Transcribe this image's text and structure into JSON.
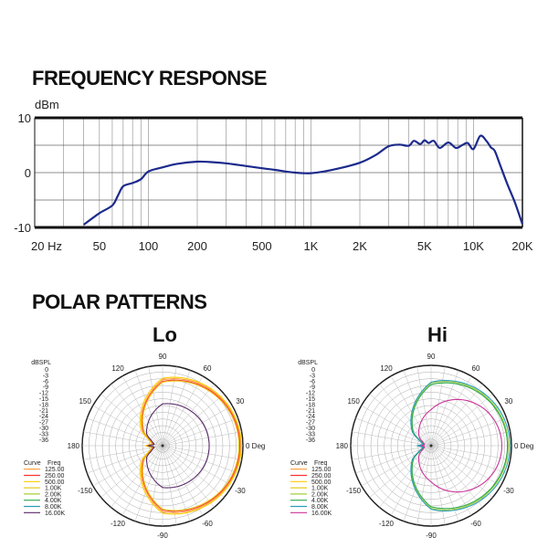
{
  "chart_data": [
    {
      "type": "line",
      "title": "FREQUENCY RESPONSE",
      "ylabel": "dBm",
      "xscale": "log",
      "xlim": [
        20,
        20000
      ],
      "ylim": [
        -10,
        10
      ],
      "grid": true,
      "x_ticks": [
        {
          "value": 20,
          "label": "20 Hz"
        },
        {
          "value": 50,
          "label": "50"
        },
        {
          "value": 100,
          "label": "100"
        },
        {
          "value": 200,
          "label": "200"
        },
        {
          "value": 500,
          "label": "500"
        },
        {
          "value": 1000,
          "label": "1K"
        },
        {
          "value": 2000,
          "label": "2K"
        },
        {
          "value": 5000,
          "label": "5K"
        },
        {
          "value": 10000,
          "label": "10K"
        },
        {
          "value": 20000,
          "label": "20K"
        }
      ],
      "y_ticks": [
        {
          "value": 10,
          "label": "10"
        },
        {
          "value": 0,
          "label": "0"
        },
        {
          "value": -10,
          "label": "-10"
        }
      ],
      "series": [
        {
          "color": "#1c2a8c",
          "x": [
            40,
            50,
            60,
            65,
            70,
            80,
            90,
            100,
            120,
            150,
            200,
            250,
            300,
            400,
            500,
            600,
            700,
            800,
            900,
            1000,
            1200,
            1500,
            2000,
            2500,
            3000,
            3500,
            4000,
            4300,
            4700,
            5000,
            5300,
            5700,
            6200,
            7000,
            7800,
            8500,
            9200,
            10000,
            11000,
            12000,
            12800,
            13500,
            14500,
            16000,
            18000,
            20000
          ],
          "values": [
            -9.5,
            -7.4,
            -6.0,
            -4.2,
            -2.5,
            -1.9,
            -1.2,
            0.2,
            0.9,
            1.6,
            2.0,
            1.9,
            1.7,
            1.2,
            0.8,
            0.5,
            0.2,
            0.0,
            -0.1,
            -0.1,
            0.2,
            0.8,
            1.8,
            3.2,
            4.8,
            5.1,
            4.9,
            5.8,
            5.2,
            5.9,
            5.4,
            5.8,
            4.5,
            5.5,
            4.5,
            5.0,
            5.4,
            4.3,
            6.7,
            5.8,
            4.6,
            4.0,
            1.6,
            -1.8,
            -5.5,
            -9.4
          ]
        }
      ]
    },
    {
      "type": "polar",
      "title": "Lo",
      "radial_axis_label": "dBSPL",
      "radial_ticks": [
        "0",
        "-3",
        "-6",
        "-9",
        "-12",
        "-15",
        "-18",
        "-21",
        "-24",
        "-27",
        "-30",
        "-33",
        "-36"
      ],
      "angle_labels": [
        "0 Deg",
        "30",
        "60",
        "90",
        "120",
        "150",
        "180",
        "-150",
        "-120",
        "-90",
        "-60",
        "-30"
      ],
      "legend_headers": [
        "Curve",
        "Freq"
      ],
      "series": [
        {
          "name": "125.00",
          "color": "#ff9933",
          "front_r": 0.97,
          "side_r": 0.82,
          "back_r": 0.18,
          "dip_r": 0.12
        },
        {
          "name": "250.00",
          "color": "#ff3333",
          "front_r": 0.96,
          "side_r": 0.8,
          "back_r": 0.17,
          "dip_r": 0.11
        },
        {
          "name": "500.00",
          "color": "#ffcc00",
          "front_r": 0.98,
          "side_r": 0.84,
          "back_r": 0.21,
          "dip_r": 0.13
        },
        {
          "name": "1.00K",
          "color": "#e8c820",
          "front_r": 0.95,
          "side_r": 0.79,
          "back_r": 0.16,
          "dip_r": 0.1
        },
        {
          "name": "2.00K",
          "color": "#a6cf3a",
          "front_r": 0,
          "side_r": 0,
          "back_r": 0,
          "dip_r": 0
        },
        {
          "name": "4.00K",
          "color": "#2aa84a",
          "front_r": 0,
          "side_r": 0,
          "back_r": 0,
          "dip_r": 0
        },
        {
          "name": "8.00K",
          "color": "#2a9fb8",
          "front_r": 0,
          "side_r": 0,
          "back_r": 0,
          "dip_r": 0
        },
        {
          "name": "16.00K",
          "color": "#5a2a6a",
          "front_r": 0.58,
          "side_r": 0.52,
          "back_r": 0.18,
          "dip_r": 0.1
        }
      ]
    },
    {
      "type": "polar",
      "title": "Hi",
      "radial_axis_label": "dBSPL",
      "radial_ticks": [
        "0",
        "-3",
        "-6",
        "-9",
        "-12",
        "-15",
        "-18",
        "-21",
        "-24",
        "-27",
        "-30",
        "-33",
        "-36"
      ],
      "angle_labels": [
        "0 Deg",
        "30",
        "60",
        "90",
        "120",
        "150",
        "180",
        "-150",
        "-120",
        "-90",
        "-60",
        "-30"
      ],
      "legend_headers": [
        "Curve",
        "Freq"
      ],
      "series": [
        {
          "name": "125.00",
          "color": "#ff9933",
          "front_r": 0,
          "side_r": 0,
          "back_r": 0,
          "dip_r": 0
        },
        {
          "name": "250.00",
          "color": "#ff3333",
          "front_r": 0,
          "side_r": 0,
          "back_r": 0,
          "dip_r": 0
        },
        {
          "name": "500.00",
          "color": "#ffcc00",
          "front_r": 0,
          "side_r": 0,
          "back_r": 0,
          "dip_r": 0
        },
        {
          "name": "1.00K",
          "color": "#e8c820",
          "front_r": 0,
          "side_r": 0,
          "back_r": 0,
          "dip_r": 0
        },
        {
          "name": "2.00K",
          "color": "#a6cf3a",
          "front_r": 0.96,
          "side_r": 0.78,
          "back_r": 0.16,
          "dip_r": 0.09
        },
        {
          "name": "4.00K",
          "color": "#2aa84a",
          "front_r": 0.95,
          "side_r": 0.76,
          "back_r": 0.15,
          "dip_r": 0.09
        },
        {
          "name": "8.00K",
          "color": "#2a9fb8",
          "front_r": 0.98,
          "side_r": 0.79,
          "back_r": 0.17,
          "dip_r": 0.1
        },
        {
          "name": "16.00K",
          "color": "#cc3399",
          "front_r": 0.88,
          "side_r": 0.45,
          "back_r": 0.12,
          "dip_r": 0.08
        }
      ]
    }
  ]
}
